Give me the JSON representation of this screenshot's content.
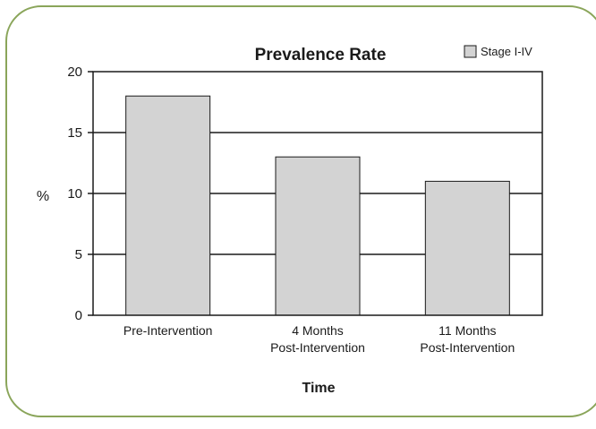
{
  "chart_data": {
    "type": "bar",
    "title": "Prevalence Rate",
    "xlabel": "Time",
    "ylabel": "%",
    "categories": [
      [
        "Pre-Intervention"
      ],
      [
        "4 Months",
        "Post-Intervention"
      ],
      [
        "11 Months",
        "Post-Intervention"
      ]
    ],
    "series": [
      {
        "name": "Stage I-IV",
        "values": [
          18,
          13,
          11
        ]
      }
    ],
    "ylim": [
      0,
      20
    ],
    "yticks": [
      0,
      5,
      10,
      15,
      20
    ],
    "grid": true,
    "legend_position": "top-right",
    "colors": {
      "bar_fill": "#d3d3d3",
      "bar_stroke": "#1a1a1a",
      "grid": "#1a1a1a",
      "frame_border": "#8aa55a"
    }
  }
}
